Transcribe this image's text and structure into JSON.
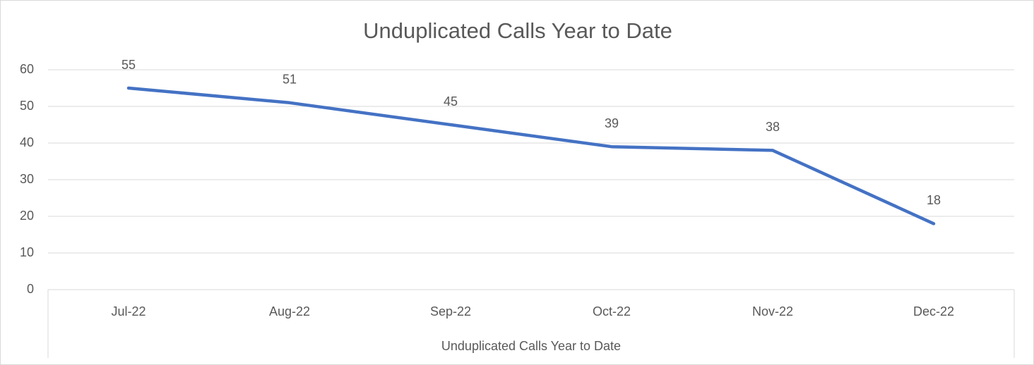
{
  "chart_data": {
    "type": "line",
    "title": "Unduplicated Calls Year to Date",
    "xlabel": "Unduplicated Calls Year to Date",
    "categories": [
      "Jul-22",
      "Aug-22",
      "Sep-22",
      "Oct-22",
      "Nov-22",
      "Dec-22"
    ],
    "series": [
      {
        "name": "Unduplicated Calls Year to Date",
        "color": "#4472c4",
        "values": [
          55,
          51,
          45,
          39,
          38,
          18
        ]
      }
    ],
    "ylim": [
      0,
      60
    ],
    "yticks": [
      0,
      10,
      20,
      30,
      40,
      50,
      60
    ],
    "grid": true,
    "data_labels": true
  }
}
